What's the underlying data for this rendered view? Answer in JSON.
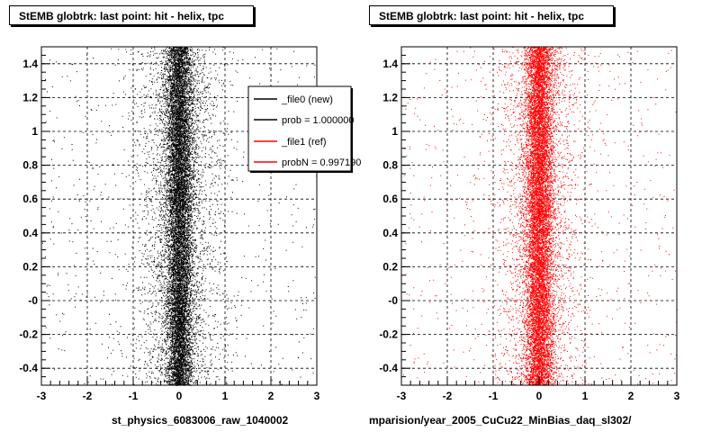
{
  "panels": [
    {
      "title": "StEMB globtrk: last point: hit - helix, tpc",
      "xlabel": "st_physics_6083006_raw_1040002",
      "point_color": "#000000"
    },
    {
      "title": "StEMB globtrk: last point: hit - helix, tpc",
      "xlabel": "mparision/year_2005_CuCu22_MinBias_daq_sl302/",
      "point_color": "#ff0000"
    }
  ],
  "legend": {
    "entries": [
      {
        "label": "_file0 (new)",
        "color": "#000000"
      },
      {
        "label": "prob = 1.000000",
        "color": "#000000"
      },
      {
        "label": "_file1 (ref)",
        "color": "#ff0000"
      },
      {
        "label": "probN = 0.997190",
        "color": "#ff0000"
      }
    ]
  },
  "footer": "",
  "chart_data": [
    {
      "type": "scatter",
      "title": "StEMB globtrk: last point: hit - helix, tpc",
      "xlabel": "st_physics_6083006_raw_1040002",
      "ylabel": "",
      "xlim": [
        -3,
        3
      ],
      "ylim": [
        -0.5,
        1.5
      ],
      "x_ticks": [
        "-3",
        "-2",
        "-1",
        "0",
        "1",
        "2",
        "3"
      ],
      "y_ticks": [
        "-0.4",
        "-0.2",
        "-0",
        "0.2",
        "0.4",
        "0.6",
        "0.8",
        "1",
        "1.2",
        "1.4"
      ],
      "grid": true,
      "distribution": {
        "x_center": 0,
        "x_core_width": 0.15,
        "y_range": [
          -0.5,
          1.5
        ],
        "color": "#000000"
      }
    },
    {
      "type": "scatter",
      "title": "StEMB globtrk: last point: hit - helix, tpc",
      "xlabel": "mparision/year_2005_CuCu22_MinBias_daq_sl302/",
      "ylabel": "",
      "xlim": [
        -3,
        3
      ],
      "ylim": [
        -0.5,
        1.5
      ],
      "x_ticks": [
        "-3",
        "-2",
        "-1",
        "0",
        "1",
        "2",
        "3"
      ],
      "y_ticks": [
        "-0.4",
        "-0.2",
        "-0",
        "0.2",
        "0.4",
        "0.6",
        "0.8",
        "1",
        "1.2",
        "1.4"
      ],
      "grid": true,
      "distribution": {
        "x_center": 0,
        "x_core_width": 0.15,
        "y_range": [
          -0.5,
          1.5
        ],
        "color": "#ff0000"
      }
    }
  ]
}
